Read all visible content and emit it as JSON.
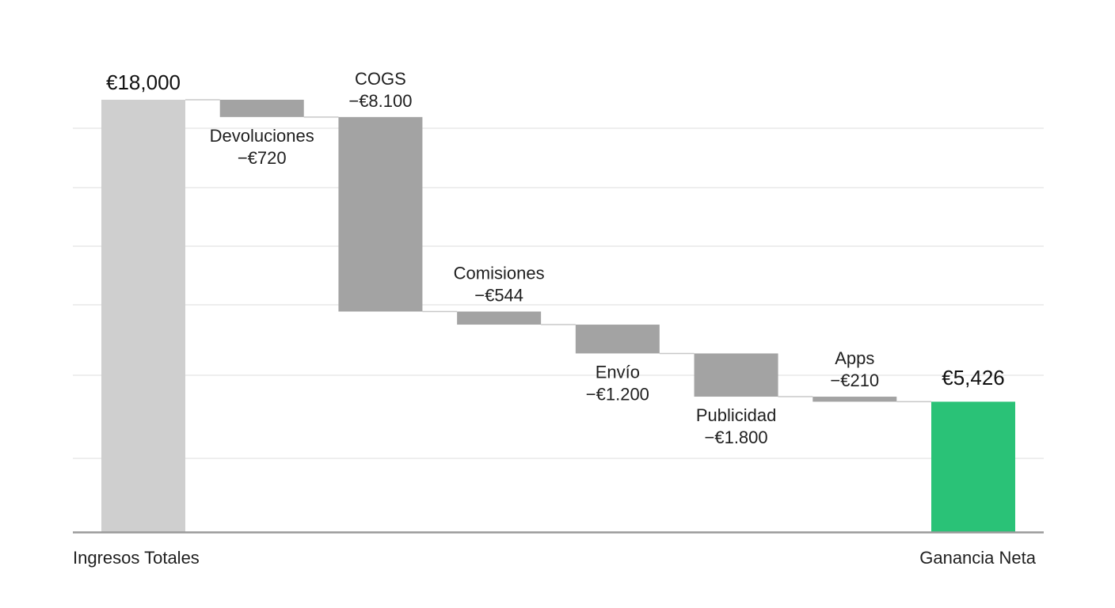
{
  "chart_data": {
    "type": "waterfall",
    "currency_symbol": "€",
    "categories": [
      "Ingresos Totales",
      "Devoluciones",
      "COGS",
      "Comisiones",
      "Envío",
      "Publicidad",
      "Apps",
      "Ganancia Neta"
    ],
    "values": [
      18000,
      -720,
      -8100,
      -544,
      -1200,
      -1800,
      -210,
      5426
    ],
    "kinds": [
      "total",
      "delta",
      "delta",
      "delta",
      "delta",
      "delta",
      "delta",
      "total"
    ],
    "value_labels": [
      "€18,000",
      "−€720",
      "−€8.100",
      "−€544",
      "−€1.200",
      "−€1.800",
      "−€210",
      "€5,426"
    ],
    "ylim": [
      0,
      19000
    ],
    "grid": true,
    "xlabel": "",
    "ylabel": "",
    "title": ""
  },
  "colors": {
    "start_total": "#cfcfcf",
    "decrease": "#a3a3a3",
    "end_total": "#2ac277",
    "gridline": "#e3e3e3",
    "axis": "#9a9a9a",
    "connector": "#c8c8c8"
  }
}
